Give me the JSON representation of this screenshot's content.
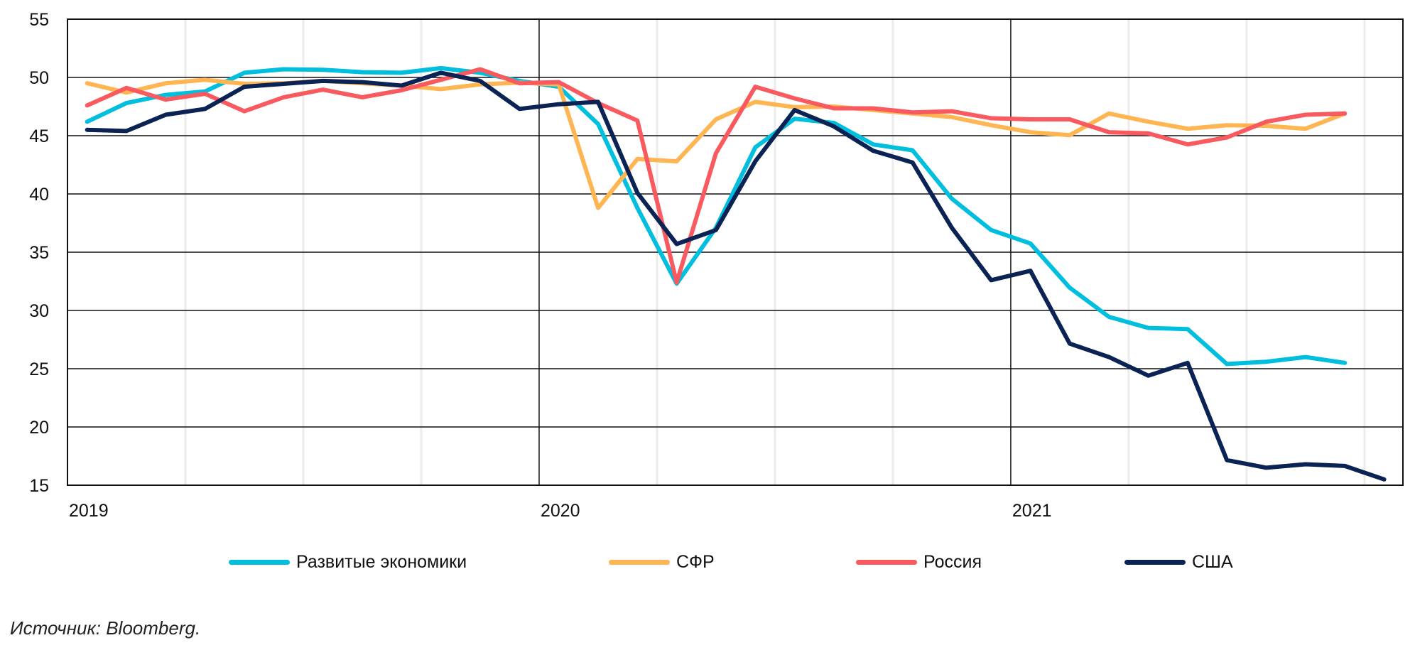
{
  "chart_data": {
    "type": "line",
    "title": "",
    "xlabel": "",
    "ylabel": "",
    "ylim": [
      15,
      55
    ],
    "yticks": [
      15,
      20,
      25,
      30,
      35,
      40,
      45,
      50,
      55
    ],
    "x_start": "2019-01",
    "x_months": 34,
    "year_labels": [
      {
        "label": "2019",
        "month_index": 0
      },
      {
        "label": "2020",
        "month_index": 12
      },
      {
        "label": "2021",
        "month_index": 24
      }
    ],
    "grid": {
      "horizontal": true,
      "vertical_years": true,
      "vertical_quarters_light": true
    },
    "legend_position": "bottom",
    "x": [
      "2019-01",
      "2019-02",
      "2019-03",
      "2019-04",
      "2019-05",
      "2019-06",
      "2019-07",
      "2019-08",
      "2019-09",
      "2019-10",
      "2019-11",
      "2019-12",
      "2020-01",
      "2020-02",
      "2020-03",
      "2020-04",
      "2020-05",
      "2020-06",
      "2020-07",
      "2020-08",
      "2020-09",
      "2020-10",
      "2020-11",
      "2020-12",
      "2021-01",
      "2021-02",
      "2021-03",
      "2021-04",
      "2021-05",
      "2021-06",
      "2021-07",
      "2021-08",
      "2021-09",
      "2021-10"
    ],
    "series": [
      {
        "name": "Развитые экономики",
        "color": "#00BEDE",
        "values": [
          46.2,
          47.8,
          48.5,
          48.8,
          50.4,
          50.7,
          50.65,
          50.45,
          50.4,
          50.8,
          50.4,
          49.7,
          49.2,
          46.0,
          38.8,
          32.3,
          37.1,
          44.0,
          46.45,
          46.1,
          44.25,
          43.75,
          39.6,
          36.9,
          35.75,
          31.95,
          29.45,
          28.5,
          28.4,
          25.4,
          25.6,
          26.0,
          25.5,
          null
        ]
      },
      {
        "name": "СФР",
        "color": "#FFB552",
        "values": [
          49.5,
          48.7,
          49.5,
          49.8,
          49.45,
          49.5,
          49.7,
          49.5,
          49.3,
          49.0,
          49.4,
          49.55,
          49.4,
          38.8,
          43.0,
          42.8,
          46.4,
          47.9,
          47.45,
          47.5,
          47.2,
          46.9,
          46.6,
          45.9,
          45.3,
          45.05,
          46.9,
          46.2,
          45.6,
          45.9,
          45.85,
          45.6,
          46.9,
          null
        ]
      },
      {
        "name": "Россия",
        "color": "#F85A60",
        "values": [
          47.6,
          49.1,
          48.1,
          48.6,
          47.1,
          48.3,
          48.95,
          48.3,
          48.9,
          49.8,
          50.7,
          49.5,
          49.6,
          47.8,
          46.3,
          32.4,
          43.5,
          49.2,
          48.2,
          47.35,
          47.35,
          47.0,
          47.1,
          46.5,
          46.4,
          46.4,
          45.3,
          45.2,
          44.25,
          44.85,
          46.2,
          46.8,
          46.9,
          null
        ]
      },
      {
        "name": "США",
        "color": "#0B2255",
        "values": [
          45.5,
          45.4,
          46.8,
          47.3,
          49.2,
          49.45,
          49.7,
          49.6,
          49.3,
          50.4,
          49.7,
          47.3,
          47.7,
          47.9,
          40.1,
          35.7,
          36.9,
          42.8,
          47.2,
          45.8,
          43.7,
          42.7,
          37.1,
          32.6,
          33.4,
          27.15,
          26.0,
          24.4,
          25.5,
          17.15,
          16.5,
          16.8,
          16.65,
          15.5
        ]
      }
    ]
  },
  "legend": {
    "items": [
      {
        "label": "Развитые экономики",
        "color": "#00BEDE"
      },
      {
        "label": "СФР",
        "color": "#FFB552"
      },
      {
        "label": "Россия",
        "color": "#F85A60"
      },
      {
        "label": "США",
        "color": "#0B2255"
      }
    ]
  },
  "source": "Источник: Bloomberg."
}
